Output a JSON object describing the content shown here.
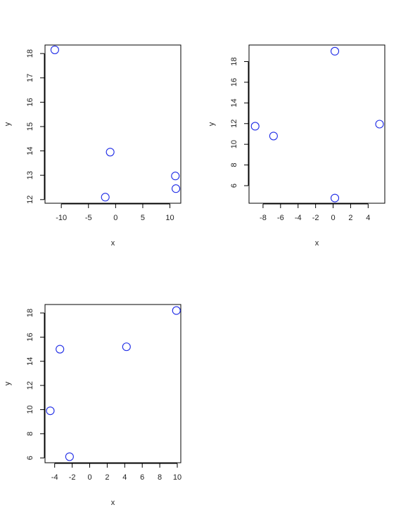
{
  "chart_data": [
    {
      "type": "scatter",
      "xlabel": "x",
      "ylabel": "y",
      "xlim": [
        -13,
        12
      ],
      "ylim": [
        11.85,
        18.35
      ],
      "xticks": [
        -10,
        -5,
        0,
        5,
        10
      ],
      "yticks": [
        12,
        13,
        14,
        15,
        16,
        17,
        18
      ],
      "point_color": "#1e2be6",
      "x": [
        -11.2,
        -1.0,
        -1.9,
        11.0,
        11.1
      ],
      "y": [
        18.15,
        13.95,
        12.1,
        12.97,
        12.45
      ]
    },
    {
      "type": "scatter",
      "xlabel": "x",
      "ylabel": "y",
      "xlim": [
        -9.6,
        5.9
      ],
      "ylim": [
        4.3,
        19.6
      ],
      "xticks": [
        -8,
        -6,
        -4,
        -2,
        0,
        2,
        4
      ],
      "yticks": [
        6,
        8,
        10,
        12,
        14,
        16,
        18
      ],
      "point_color": "#1e2be6",
      "x": [
        -8.9,
        -6.8,
        0.2,
        0.2,
        5.3
      ],
      "y": [
        11.75,
        10.8,
        19.0,
        4.8,
        11.95
      ]
    },
    {
      "type": "scatter",
      "xlabel": "x",
      "ylabel": "y",
      "xlim": [
        -5.1,
        10.4
      ],
      "ylim": [
        5.6,
        18.7
      ],
      "xticks": [
        -4,
        -2,
        0,
        2,
        4,
        6,
        8,
        10
      ],
      "yticks": [
        6,
        8,
        10,
        12,
        14,
        16,
        18
      ],
      "point_color": "#1e2be6",
      "x": [
        -4.5,
        -3.4,
        -2.3,
        4.2,
        9.9
      ],
      "y": [
        9.9,
        15.0,
        6.1,
        15.2,
        18.2
      ]
    }
  ]
}
